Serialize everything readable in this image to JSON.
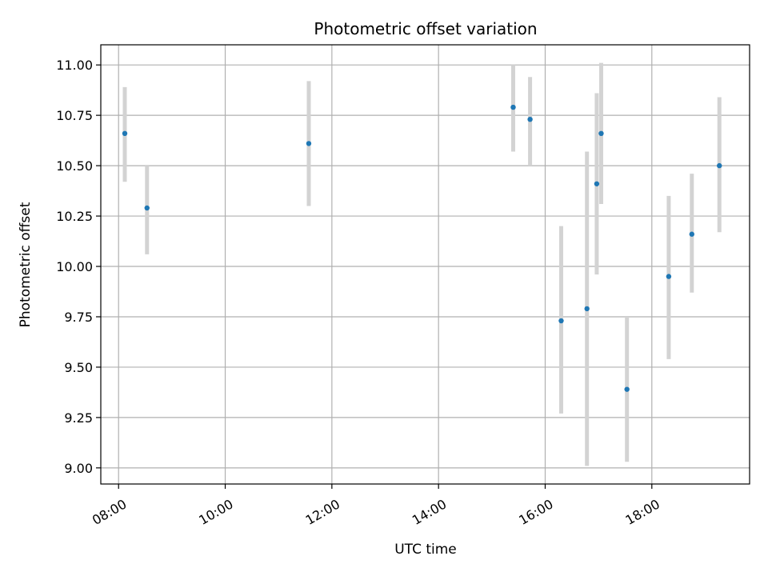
{
  "chart_data": {
    "type": "scatter",
    "title": "Photometric offset variation",
    "xlabel": "UTC time",
    "ylabel": "Photometric offset",
    "x_axis_type": "time",
    "xlim": [
      "07:40",
      "19:50"
    ],
    "ylim": [
      8.92,
      11.1
    ],
    "x_ticks": [
      "08:00",
      "10:00",
      "12:00",
      "14:00",
      "16:00",
      "18:00"
    ],
    "y_ticks": [
      "9.00",
      "9.25",
      "9.50",
      "9.75",
      "10.00",
      "10.25",
      "10.50",
      "10.75",
      "11.00"
    ],
    "grid": true,
    "legend": "none",
    "point_color": "#1f77b4",
    "errorbar_color": "#d3d3d3",
    "points": [
      {
        "x": "08:07",
        "y": 10.66,
        "ylow": 10.42,
        "yhigh": 10.89
      },
      {
        "x": "08:32",
        "y": 10.29,
        "ylow": 10.06,
        "yhigh": 10.5
      },
      {
        "x": "11:34",
        "y": 10.61,
        "ylow": 10.3,
        "yhigh": 10.92
      },
      {
        "x": "15:24",
        "y": 10.79,
        "ylow": 10.57,
        "yhigh": 11.0
      },
      {
        "x": "15:43",
        "y": 10.73,
        "ylow": 10.5,
        "yhigh": 10.94
      },
      {
        "x": "16:18",
        "y": 9.73,
        "ylow": 9.27,
        "yhigh": 10.2
      },
      {
        "x": "16:47",
        "y": 9.79,
        "ylow": 9.01,
        "yhigh": 10.57
      },
      {
        "x": "16:58",
        "y": 10.41,
        "ylow": 9.96,
        "yhigh": 10.86
      },
      {
        "x": "17:03",
        "y": 10.66,
        "ylow": 10.31,
        "yhigh": 11.01
      },
      {
        "x": "17:32",
        "y": 9.39,
        "ylow": 9.03,
        "yhigh": 9.75
      },
      {
        "x": "18:19",
        "y": 9.95,
        "ylow": 9.54,
        "yhigh": 10.35
      },
      {
        "x": "18:45",
        "y": 10.16,
        "ylow": 9.87,
        "yhigh": 10.46
      },
      {
        "x": "19:16",
        "y": 10.5,
        "ylow": 10.17,
        "yhigh": 10.84
      }
    ]
  }
}
